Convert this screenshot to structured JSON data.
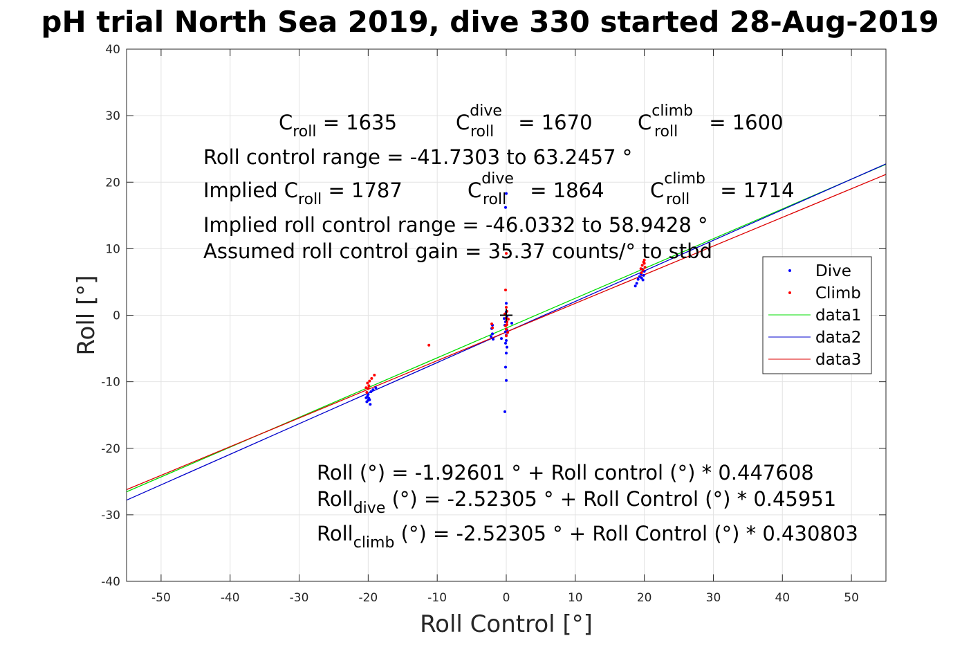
{
  "title": "pH trial North Sea 2019, dive 330 started 28-Aug-2019",
  "chart_data": {
    "type": "scatter",
    "xlabel": "Roll Control [°]",
    "ylabel": "Roll [°]",
    "xlim": [
      -55,
      55
    ],
    "ylim": [
      -40,
      40
    ],
    "xticks": [
      -50,
      -40,
      -30,
      -20,
      -10,
      0,
      10,
      20,
      30,
      40,
      50
    ],
    "yticks": [
      -40,
      -30,
      -20,
      -10,
      0,
      10,
      20,
      30,
      40
    ],
    "grid": true,
    "legend_position": "right",
    "legend": [
      "Dive",
      "Climb",
      "data1",
      "data2",
      "data3"
    ],
    "colors": {
      "dive": "#0000ff",
      "climb": "#ff0000",
      "data1": "#00dd00",
      "data2": "#0000cc",
      "data3": "#dd0000",
      "marker": "#000000"
    },
    "series": [
      {
        "name": "Dive",
        "kind": "points",
        "points": [
          [
            -20.1,
            -12.2
          ],
          [
            -20.0,
            -12.8
          ],
          [
            -19.9,
            -12.5
          ],
          [
            -20.2,
            -13.0
          ],
          [
            -19.8,
            -12.7
          ],
          [
            -20.0,
            -11.9
          ],
          [
            -19.7,
            -13.4
          ],
          [
            -20.3,
            -12.4
          ],
          [
            -19.6,
            -11.5
          ],
          [
            -19.3,
            -11.2
          ],
          [
            -18.9,
            -10.9
          ],
          [
            -2.1,
            -2.0
          ],
          [
            -2.0,
            -2.8
          ],
          [
            -2.2,
            -3.2
          ],
          [
            -1.9,
            -3.6
          ],
          [
            -2.0,
            -1.5
          ],
          [
            -0.7,
            -3.5
          ],
          [
            -0.3,
            -0.5
          ],
          [
            -0.2,
            -1.5
          ],
          [
            -0.1,
            -2.5
          ],
          [
            0.0,
            -3.0
          ],
          [
            0.0,
            -3.8
          ],
          [
            -0.1,
            -4.2
          ],
          [
            0.1,
            -4.8
          ],
          [
            0.0,
            -5.7
          ],
          [
            -0.1,
            -7.8
          ],
          [
            0.0,
            -9.8
          ],
          [
            -0.2,
            -14.5
          ],
          [
            0.0,
            1.8
          ],
          [
            0.1,
            -0.2
          ],
          [
            -0.1,
            -1.0
          ],
          [
            0.0,
            0.5
          ],
          [
            0.1,
            -2.2
          ],
          [
            0.0,
            18.3
          ],
          [
            -0.1,
            16.2
          ],
          [
            0.8,
            -1.2
          ],
          [
            18.7,
            4.4
          ],
          [
            18.9,
            4.8
          ],
          [
            19.1,
            5.4
          ],
          [
            19.3,
            5.8
          ],
          [
            19.5,
            6.2
          ],
          [
            19.6,
            5.6
          ],
          [
            19.8,
            5.3
          ],
          [
            19.9,
            6.0
          ],
          [
            20.0,
            6.6
          ],
          [
            19.7,
            6.9
          ]
        ]
      },
      {
        "name": "Climb",
        "kind": "points",
        "points": [
          [
            -20.1,
            -10.2
          ],
          [
            -19.9,
            -10.6
          ],
          [
            -20.0,
            -11.0
          ],
          [
            -20.2,
            -11.6
          ],
          [
            -19.8,
            -9.9
          ],
          [
            -19.5,
            -9.5
          ],
          [
            -19.1,
            -9.0
          ],
          [
            -20.3,
            -10.9
          ],
          [
            -11.2,
            -4.5
          ],
          [
            -2.1,
            -1.3
          ],
          [
            -2.0,
            -1.9
          ],
          [
            -0.1,
            3.8
          ],
          [
            0.0,
            1.2
          ],
          [
            0.1,
            0.6
          ],
          [
            -0.2,
            0.2
          ],
          [
            0.0,
            -0.4
          ],
          [
            0.1,
            -1.0
          ],
          [
            -0.1,
            -1.6
          ],
          [
            0.0,
            -2.1
          ],
          [
            0.2,
            -2.6
          ],
          [
            0.0,
            -3.1
          ],
          [
            0.3,
            -0.6
          ],
          [
            0.0,
            9.3
          ],
          [
            0.1,
            -1.4
          ],
          [
            19.5,
            7.0
          ],
          [
            19.7,
            7.5
          ],
          [
            19.9,
            8.0
          ],
          [
            20.0,
            8.3
          ],
          [
            20.1,
            7.2
          ],
          [
            19.8,
            6.8
          ],
          [
            20.0,
            7.8
          ],
          [
            19.6,
            6.4
          ]
        ]
      },
      {
        "name": "data1",
        "kind": "line",
        "intercept": -1.92601,
        "slope": 0.447608
      },
      {
        "name": "data2",
        "kind": "line",
        "intercept": -2.52305,
        "slope": 0.45951
      },
      {
        "name": "data3",
        "kind": "line",
        "intercept": -2.52305,
        "slope": 0.430803
      }
    ],
    "origin_marker": [
      0,
      0
    ]
  },
  "annotations": {
    "line1": {
      "c_roll": {
        "base": "C",
        "sub": "roll",
        "value": " = 1635"
      },
      "c_dive": {
        "base": "C",
        "sup": "dive",
        "sub": "roll",
        "value": " = 1670"
      },
      "c_climb": {
        "base": "C",
        "sup": "climb",
        "sub": "roll",
        "value": " = 1600"
      }
    },
    "line2": "Roll control range = -41.7303 to 63.2457 °",
    "line3": {
      "c_roll": {
        "base": "Implied C",
        "sub": "roll",
        "value": " = 1787"
      },
      "c_dive": {
        "base": "C",
        "sup": "dive",
        "sub": "roll",
        "value": " = 1864"
      },
      "c_climb": {
        "base": "C",
        "sup": "climb",
        "sub": "roll",
        "value": " = 1714"
      }
    },
    "line4": "Implied roll control range = -46.0332 to 58.9428 °",
    "line5": "Assumed roll control gain = 35.37 counts/° to stbd",
    "fit1": "Roll (°) = -1.92601 ° + Roll control (°) * 0.447608",
    "fit2": {
      "base": "Roll",
      "sub": "dive",
      "rest": " (°) = -2.52305 ° + Roll Control (°) * 0.45951"
    },
    "fit3": {
      "base": "Roll",
      "sub": "climb",
      "rest": " (°) = -2.52305 ° + Roll Control (°) * 0.430803"
    }
  }
}
